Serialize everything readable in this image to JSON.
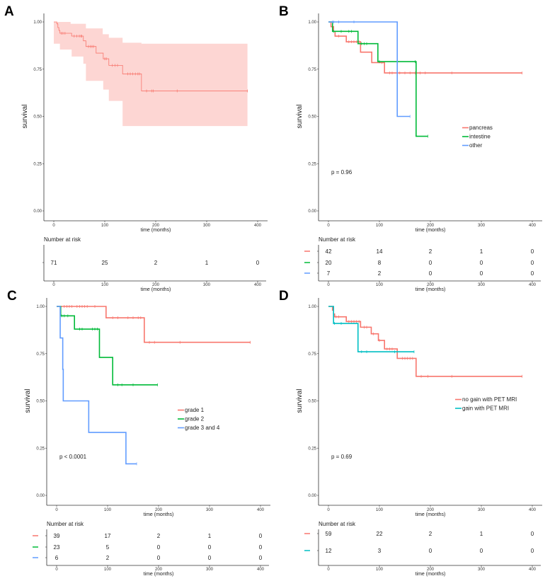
{
  "chart_data": [
    {
      "type": "line",
      "panel": "A",
      "ylabel": "survival",
      "xlabel": "time (months)",
      "xlim": [
        0,
        400
      ],
      "ylim": [
        0,
        1
      ],
      "xticks": [
        "0",
        "100",
        "200",
        "300",
        "400"
      ],
      "yticks": [
        "0.00",
        "0.25",
        "0.50",
        "0.75",
        "1.00"
      ],
      "grid": false,
      "series": [
        {
          "color": "#F8766D",
          "steps": [
            [
              0,
              1
            ],
            [
              6,
              0.99
            ],
            [
              8,
              0.97
            ],
            [
              10,
              0.955
            ],
            [
              12,
              0.94
            ],
            [
              35,
              0.925
            ],
            [
              58,
              0.9
            ],
            [
              63,
              0.87
            ],
            [
              83,
              0.835
            ],
            [
              97,
              0.805
            ],
            [
              108,
              0.77
            ],
            [
              135,
              0.725
            ],
            [
              172,
              0.635
            ],
            [
              380,
              0.635
            ]
          ],
          "censored": [
            15,
            18,
            22,
            40,
            45,
            50,
            53,
            55,
            68,
            72,
            75,
            78,
            100,
            103,
            115,
            120,
            125,
            145,
            150,
            155,
            160,
            165,
            168,
            182,
            192,
            195,
            242,
            380
          ],
          "ci_upper": [
            [
              0,
              1
            ],
            [
              33,
              0.99
            ],
            [
              63,
              0.966
            ],
            [
              96,
              0.935
            ],
            [
              108,
              0.916
            ],
            [
              135,
              0.89
            ],
            [
              172,
              0.885
            ],
            [
              380,
              0.885
            ]
          ],
          "ci_lower": [
            [
              0,
              1
            ],
            [
              12,
              0.885
            ],
            [
              35,
              0.854
            ],
            [
              58,
              0.817
            ],
            [
              63,
              0.779
            ],
            [
              97,
              0.688
            ],
            [
              108,
              0.642
            ],
            [
              135,
              0.582
            ],
            [
              172,
              0.449
            ],
            [
              380,
              0.449
            ]
          ]
        }
      ],
      "risk_table": {
        "title": "Number at risk",
        "rows": [
          {
            "color": "#222222",
            "values": [
              "71",
              "25",
              "2",
              "1",
              "0"
            ]
          }
        ]
      }
    },
    {
      "type": "line",
      "panel": "B",
      "ylabel": "survival",
      "xlabel": "time (months)",
      "xlim": [
        0,
        400
      ],
      "ylim": [
        0,
        1
      ],
      "xticks": [
        "0",
        "100",
        "200",
        "300",
        "400"
      ],
      "yticks": [
        "0.00",
        "0.25",
        "0.50",
        "0.75",
        "1.00"
      ],
      "grid": false,
      "pvalue": "p = 0.96",
      "legend_position": "center-right",
      "series": [
        {
          "name": "pancreas",
          "color": "#F8766D",
          "steps": [
            [
              0,
              1
            ],
            [
              5,
              0.975
            ],
            [
              10,
              0.95
            ],
            [
              13,
              0.925
            ],
            [
              35,
              0.895
            ],
            [
              63,
              0.84
            ],
            [
              85,
              0.785
            ],
            [
              110,
              0.73
            ],
            [
              380,
              0.73
            ]
          ],
          "censored": [
            20,
            40,
            45,
            50,
            55,
            60,
            105,
            120,
            125,
            140,
            150,
            160,
            170,
            180,
            190,
            242,
            380
          ]
        },
        {
          "name": "intestine",
          "color": "#00BA38",
          "steps": [
            [
              0,
              1
            ],
            [
              8,
              0.95
            ],
            [
              58,
              0.885
            ],
            [
              97,
              0.79
            ],
            [
              172,
              0.395
            ],
            [
              195,
              0.395
            ]
          ],
          "censored": [
            10,
            25,
            40,
            45,
            65,
            70,
            75,
            100,
            170,
            195
          ]
        },
        {
          "name": "other",
          "color": "#619CFF",
          "steps": [
            [
              0,
              1
            ],
            [
              135,
              0.5
            ],
            [
              160,
              0.5
            ]
          ],
          "censored": [
            8,
            10,
            20,
            50,
            160
          ]
        }
      ],
      "risk_table": {
        "title": "Number at risk",
        "rows": [
          {
            "color": "#F8766D",
            "values": [
              "42",
              "14",
              "2",
              "1",
              "0"
            ]
          },
          {
            "color": "#00BA38",
            "values": [
              "20",
              "8",
              "0",
              "0",
              "0"
            ]
          },
          {
            "color": "#619CFF",
            "values": [
              "7",
              "2",
              "0",
              "0",
              "0"
            ]
          }
        ]
      }
    },
    {
      "type": "line",
      "panel": "C",
      "ylabel": "survival",
      "xlabel": "time (months)",
      "xlim": [
        0,
        400
      ],
      "ylim": [
        0,
        1
      ],
      "xticks": [
        "0",
        "100",
        "200",
        "300",
        "400"
      ],
      "yticks": [
        "0.00",
        "0.25",
        "0.50",
        "0.75",
        "1.00"
      ],
      "grid": false,
      "pvalue": "p < 0.0001",
      "legend_position": "center-right",
      "series": [
        {
          "name": "grade 1",
          "color": "#F8766D",
          "steps": [
            [
              0,
              1
            ],
            [
              97,
              0.94
            ],
            [
              172,
              0.81
            ],
            [
              380,
              0.81
            ]
          ],
          "censored": [
            15,
            20,
            25,
            30,
            40,
            45,
            50,
            55,
            60,
            75,
            110,
            120,
            140,
            150,
            160,
            165,
            182,
            192,
            242,
            380
          ]
        },
        {
          "name": "grade 2",
          "color": "#00BA38",
          "steps": [
            [
              0,
              1
            ],
            [
              8,
              0.95
            ],
            [
              35,
              0.88
            ],
            [
              84,
              0.73
            ],
            [
              110,
              0.585
            ],
            [
              198,
              0.585
            ]
          ],
          "censored": [
            10,
            15,
            22,
            45,
            50,
            70,
            75,
            80,
            120,
            128,
            150,
            198
          ]
        },
        {
          "name": "grade 3 and 4",
          "color": "#619CFF",
          "steps": [
            [
              0,
              1
            ],
            [
              7,
              0.833
            ],
            [
              12,
              0.667
            ],
            [
              13,
              0.5
            ],
            [
              63,
              0.333
            ],
            [
              136,
              0.167
            ],
            [
              157,
              0.167
            ]
          ],
          "censored": [
            157
          ]
        }
      ],
      "risk_table": {
        "title": "Number at risk",
        "rows": [
          {
            "color": "#F8766D",
            "values": [
              "39",
              "17",
              "2",
              "1",
              "0"
            ]
          },
          {
            "color": "#00BA38",
            "values": [
              "23",
              "5",
              "0",
              "0",
              "0"
            ]
          },
          {
            "color": "#619CFF",
            "values": [
              "6",
              "2",
              "0",
              "0",
              "0"
            ]
          }
        ]
      }
    },
    {
      "type": "line",
      "panel": "D",
      "ylabel": "survival",
      "xlabel": "time (months)",
      "xlim": [
        0,
        400
      ],
      "ylim": [
        0,
        1
      ],
      "xticks": [
        "0",
        "100",
        "200",
        "300",
        "400"
      ],
      "yticks": [
        "0.00",
        "0.25",
        "0.50",
        "0.75",
        "1.00"
      ],
      "grid": false,
      "pvalue": "p = 0.69",
      "legend_position": "center-right",
      "series": [
        {
          "name": "no gain with PET MRI",
          "color": "#F8766D",
          "steps": [
            [
              0,
              1
            ],
            [
              8,
              0.98
            ],
            [
              10,
              0.96
            ],
            [
              12,
              0.945
            ],
            [
              35,
              0.92
            ],
            [
              63,
              0.89
            ],
            [
              84,
              0.855
            ],
            [
              98,
              0.82
            ],
            [
              110,
              0.775
            ],
            [
              135,
              0.725
            ],
            [
              172,
              0.63
            ],
            [
              380,
              0.63
            ]
          ],
          "censored": [
            15,
            20,
            40,
            45,
            50,
            55,
            60,
            70,
            75,
            88,
            100,
            115,
            120,
            125,
            145,
            150,
            155,
            160,
            165,
            182,
            195,
            242,
            380
          ]
        },
        {
          "name": "gain with PET MRI",
          "color": "#00BFC4",
          "steps": [
            [
              0,
              1
            ],
            [
              10,
              0.91
            ],
            [
              58,
              0.76
            ],
            [
              168,
              0.76
            ]
          ],
          "censored": [
            12,
            25,
            65,
            75,
            130,
            168
          ]
        }
      ],
      "risk_table": {
        "title": "Number at risk",
        "rows": [
          {
            "color": "#F8766D",
            "values": [
              "59",
              "22",
              "2",
              "1",
              "0"
            ]
          },
          {
            "color": "#00BFC4",
            "values": [
              "12",
              "3",
              "0",
              "0",
              "0"
            ]
          }
        ]
      }
    }
  ]
}
